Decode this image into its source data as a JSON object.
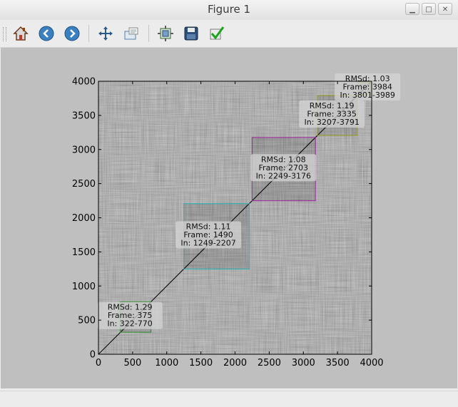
{
  "window": {
    "title": "Figure 1",
    "controls": [
      "▁",
      "□",
      "✕"
    ]
  },
  "toolbar": {
    "buttons": [
      {
        "name": "home-button",
        "icon": "home-icon"
      },
      {
        "name": "back-button",
        "icon": "back-arrow-icon"
      },
      {
        "name": "forward-button",
        "icon": "forward-arrow-icon"
      },
      {
        "name": "pan-button",
        "icon": "pan-move-icon"
      },
      {
        "name": "zoom-button",
        "icon": "zoom-rect-icon"
      },
      {
        "name": "subplots-button",
        "icon": "subplots-icon"
      },
      {
        "name": "save-button",
        "icon": "save-floppy-icon"
      },
      {
        "name": "edit-axis-button",
        "icon": "checkmark-icon"
      }
    ]
  },
  "chart_data": {
    "type": "heatmap",
    "xlim": [
      0,
      4000
    ],
    "ylim": [
      0,
      4000
    ],
    "x_ticks": [
      0,
      500,
      1000,
      1500,
      2000,
      2500,
      3000,
      3500,
      4000
    ],
    "y_ticks": [
      0,
      500,
      1000,
      1500,
      2000,
      2500,
      3000,
      3500,
      4000
    ],
    "clusters": [
      {
        "label": [
          "RMSd: 1.29",
          "Frame: 375",
          "In: 322-770"
        ],
        "range": [
          322,
          770
        ],
        "frame": 375,
        "color": "#2f8f2f"
      },
      {
        "label": [
          "RMSd: 1.11",
          "Frame: 1490",
          "In: 1249-2207"
        ],
        "range": [
          1249,
          2207
        ],
        "frame": 1490,
        "color": "#28b4b4"
      },
      {
        "label": [
          "RMSd: 1.08",
          "Frame: 2703",
          "In: 2249-3176"
        ],
        "range": [
          2249,
          3176
        ],
        "frame": 2703,
        "color": "#a020a0"
      },
      {
        "label": [
          "RMSd: 1.19",
          "Frame: 3335",
          "In: 3207-3791"
        ],
        "range": [
          3207,
          3791
        ],
        "frame": 3335,
        "color": "#9a9a20"
      },
      {
        "label": [
          "RMSd: 1.03",
          "Frame: 3984",
          "In: 3801-3989"
        ],
        "range": [
          3801,
          3989
        ],
        "frame": 3984,
        "color": "#9a9a20"
      }
    ]
  }
}
